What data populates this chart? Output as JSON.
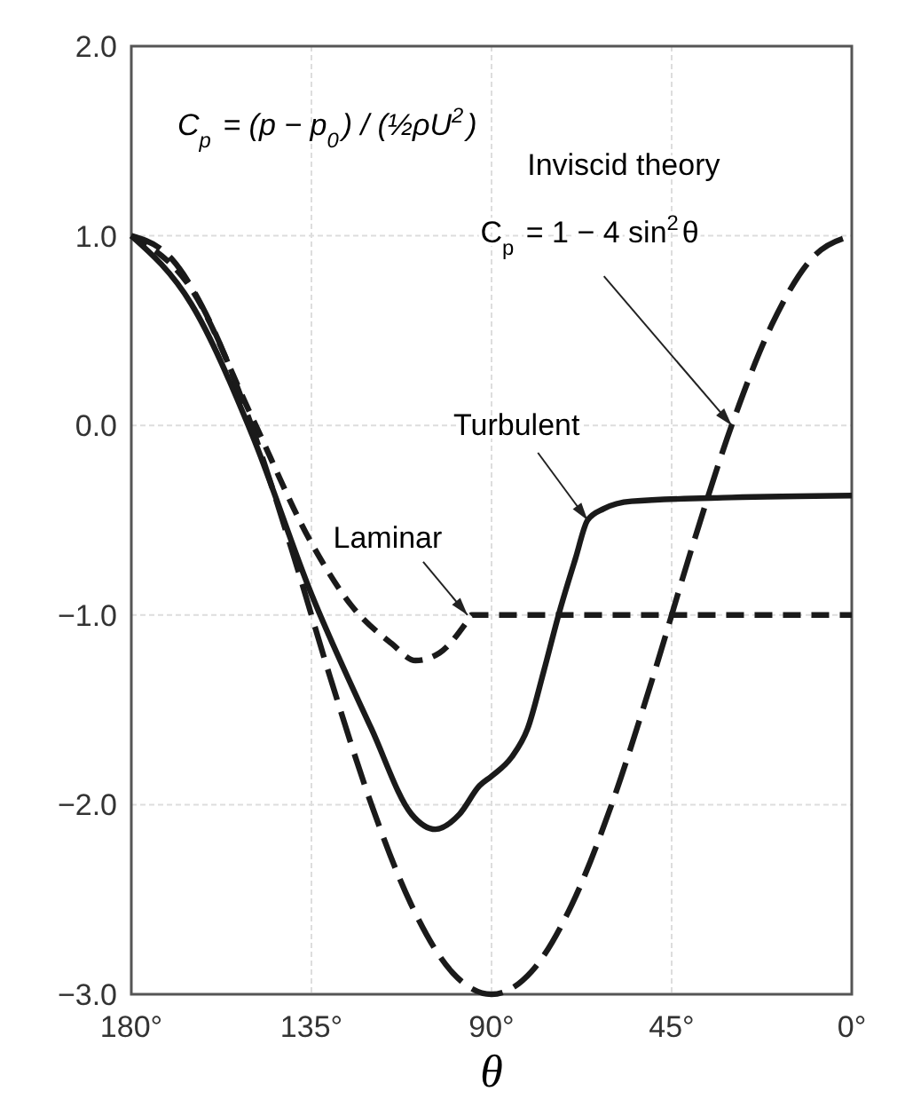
{
  "chart_data": {
    "type": "line",
    "xlabel": "θ",
    "xlim": [
      180,
      0
    ],
    "ylim": [
      -3,
      2
    ],
    "xticks": [
      {
        "value": 180,
        "label": "180°"
      },
      {
        "value": 135,
        "label": "135°"
      },
      {
        "value": 90,
        "label": "90°"
      },
      {
        "value": 45,
        "label": "45°"
      },
      {
        "value": 0,
        "label": "0°"
      }
    ],
    "yticks": [
      {
        "value": 2,
        "label": "2.0"
      },
      {
        "value": 1,
        "label": "1.0"
      },
      {
        "value": 0,
        "label": "0.0"
      },
      {
        "value": -1,
        "label": "−1.0"
      },
      {
        "value": -2,
        "label": "−2.0"
      },
      {
        "value": -3,
        "label": "−3.0"
      }
    ],
    "grid": true,
    "series": [
      {
        "color": "#1a1a1a",
        "line_style": "dashed",
        "x": [
          180,
          165,
          150,
          135,
          125,
          115,
          109,
          103,
          96,
          95,
          50,
          0
        ],
        "values": [
          1.0,
          0.72,
          0.05,
          -0.62,
          -0.95,
          -1.15,
          -1.24,
          -1.2,
          -1.03,
          -1.0,
          -1.0,
          -1.0
        ]
      },
      {
        "color": "#1a1a1a",
        "line_style": "solid",
        "x": [
          180,
          165,
          150,
          135,
          120,
          110,
          104,
          98,
          93,
          90,
          85,
          81,
          77,
          73,
          69,
          66,
          62,
          55,
          30,
          0
        ],
        "values": [
          1.0,
          0.64,
          -0.04,
          -0.89,
          -1.6,
          -2.05,
          -2.13,
          -2.05,
          -1.9,
          -1.85,
          -1.75,
          -1.6,
          -1.3,
          -0.98,
          -0.7,
          -0.5,
          -0.44,
          -0.4,
          -0.38,
          -0.37
        ]
      },
      {
        "color": "#1a1a1a",
        "line_style": "dashed",
        "x": [
          180,
          170,
          160,
          150,
          140,
          130,
          120,
          110,
          100,
          90,
          80,
          70,
          60,
          50,
          40,
          30,
          20,
          10,
          0
        ],
        "values": [
          1,
          0.88,
          0.53,
          0,
          -0.65,
          -1.35,
          -2,
          -2.53,
          -2.88,
          -3,
          -2.88,
          -2.53,
          -2,
          -1.35,
          -0.65,
          0,
          0.53,
          0.88,
          1
        ]
      }
    ],
    "annotations": [
      "C$_{p}$ = (p − p$_{0}$) / (½ρU$^{2}$)",
      "Inviscid theory",
      {
        "text": "C$_{p}$ = 1 − 4 sin$^{2}$θ",
        "x": 30,
        "y": 0
      },
      {
        "text": "Turbulent",
        "x": 66,
        "y": -0.5
      },
      {
        "text": "Laminar",
        "x": 96,
        "y": -1.0
      }
    ]
  }
}
